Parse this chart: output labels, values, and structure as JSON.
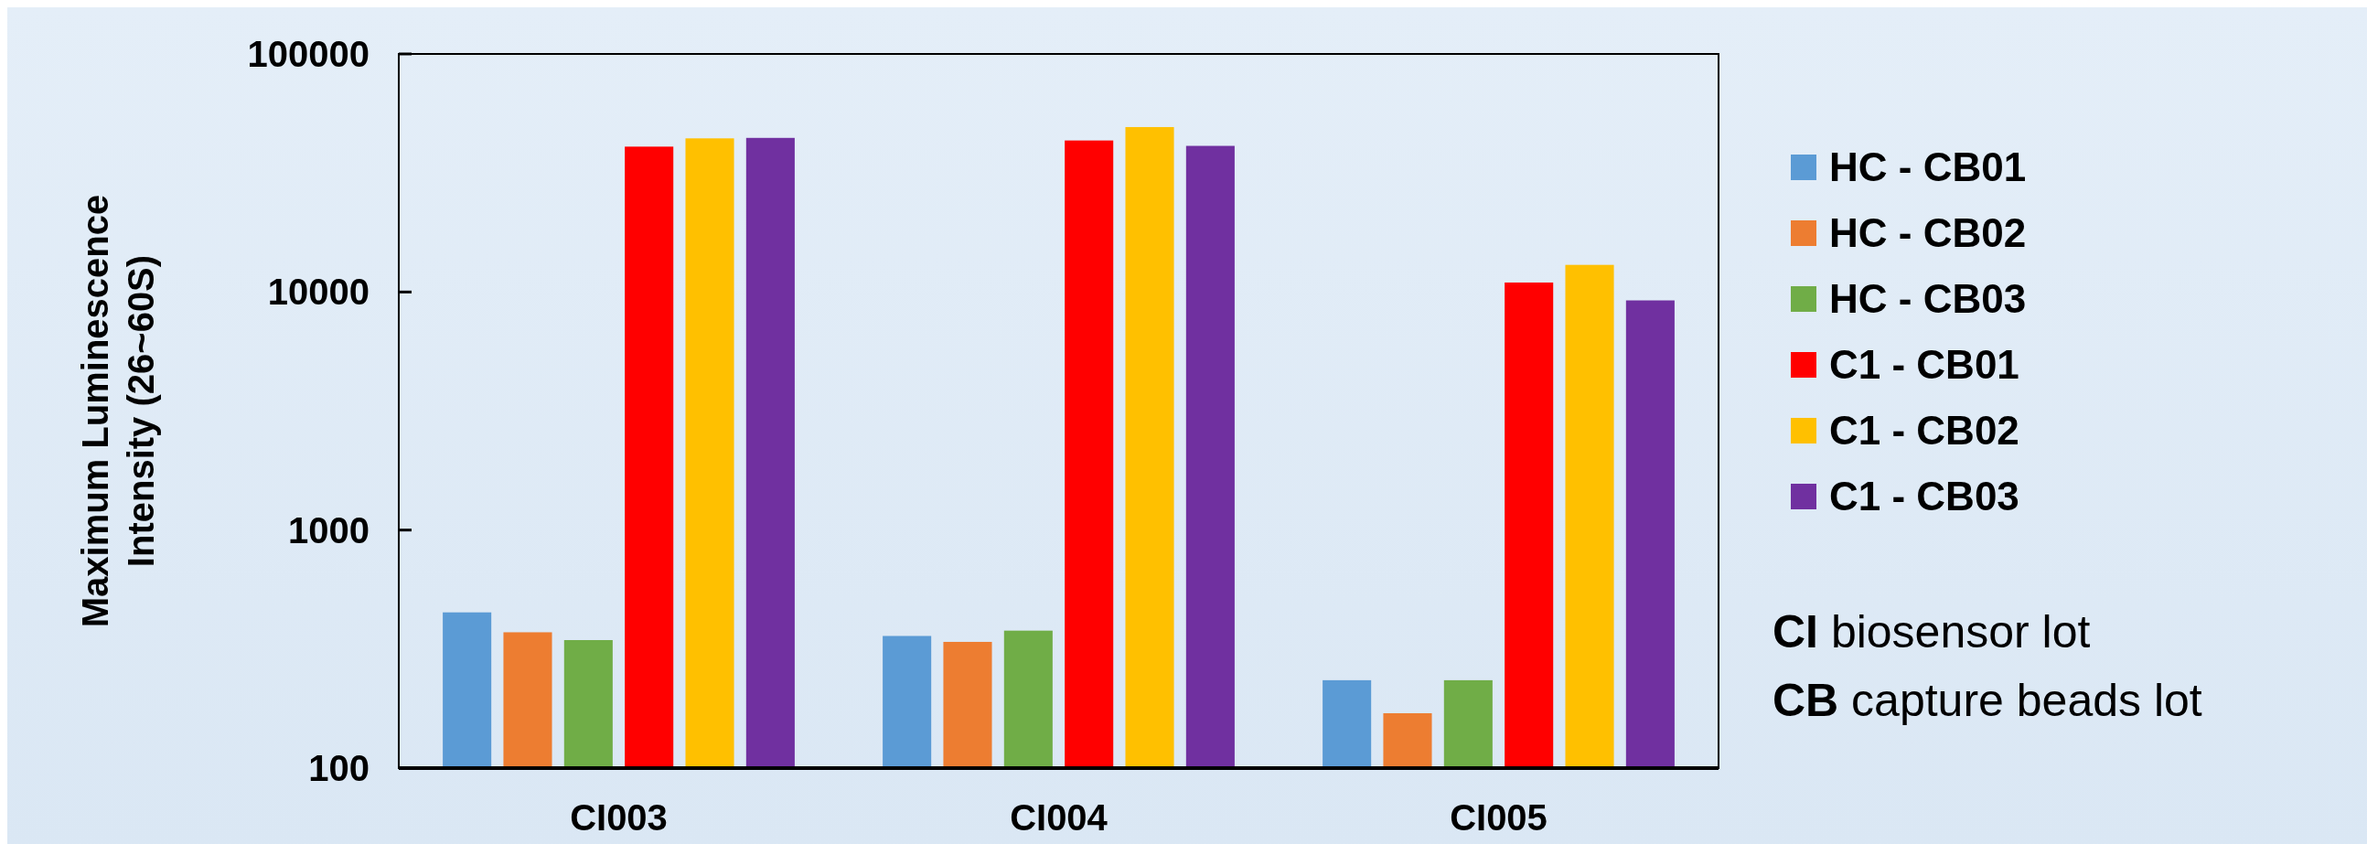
{
  "chart_data": {
    "type": "bar",
    "ylabel": "Maximum Luminescence Intensity (26~60S)",
    "categories": [
      "CI003",
      "CI004",
      "CI005"
    ],
    "series": [
      {
        "name": "HC - CB01",
        "color": "#5b9bd5",
        "values": [
          451,
          359,
          234
        ]
      },
      {
        "name": "HC - CB02",
        "color": "#ed7d31",
        "values": [
          372,
          339,
          170
        ]
      },
      {
        "name": "HC - CB03",
        "color": "#70ad47",
        "values": [
          345,
          378,
          234
        ]
      },
      {
        "name": "C1 - CB01",
        "color": "#ff0000",
        "values": [
          40800,
          43300,
          10960
        ]
      },
      {
        "name": "C1 - CB02",
        "color": "#ffc000",
        "values": [
          44200,
          49300,
          13000
        ]
      },
      {
        "name": "C1 - CB03",
        "color": "#7030a0",
        "values": [
          44400,
          41100,
          9220
        ]
      }
    ],
    "log": true,
    "ylim": [
      100,
      100000
    ],
    "yticks": [
      100,
      1000,
      10000,
      100000
    ],
    "grid": false,
    "legend": "right",
    "annotations": [
      "CI biosensor lot",
      "CB capture beads lot"
    ]
  }
}
